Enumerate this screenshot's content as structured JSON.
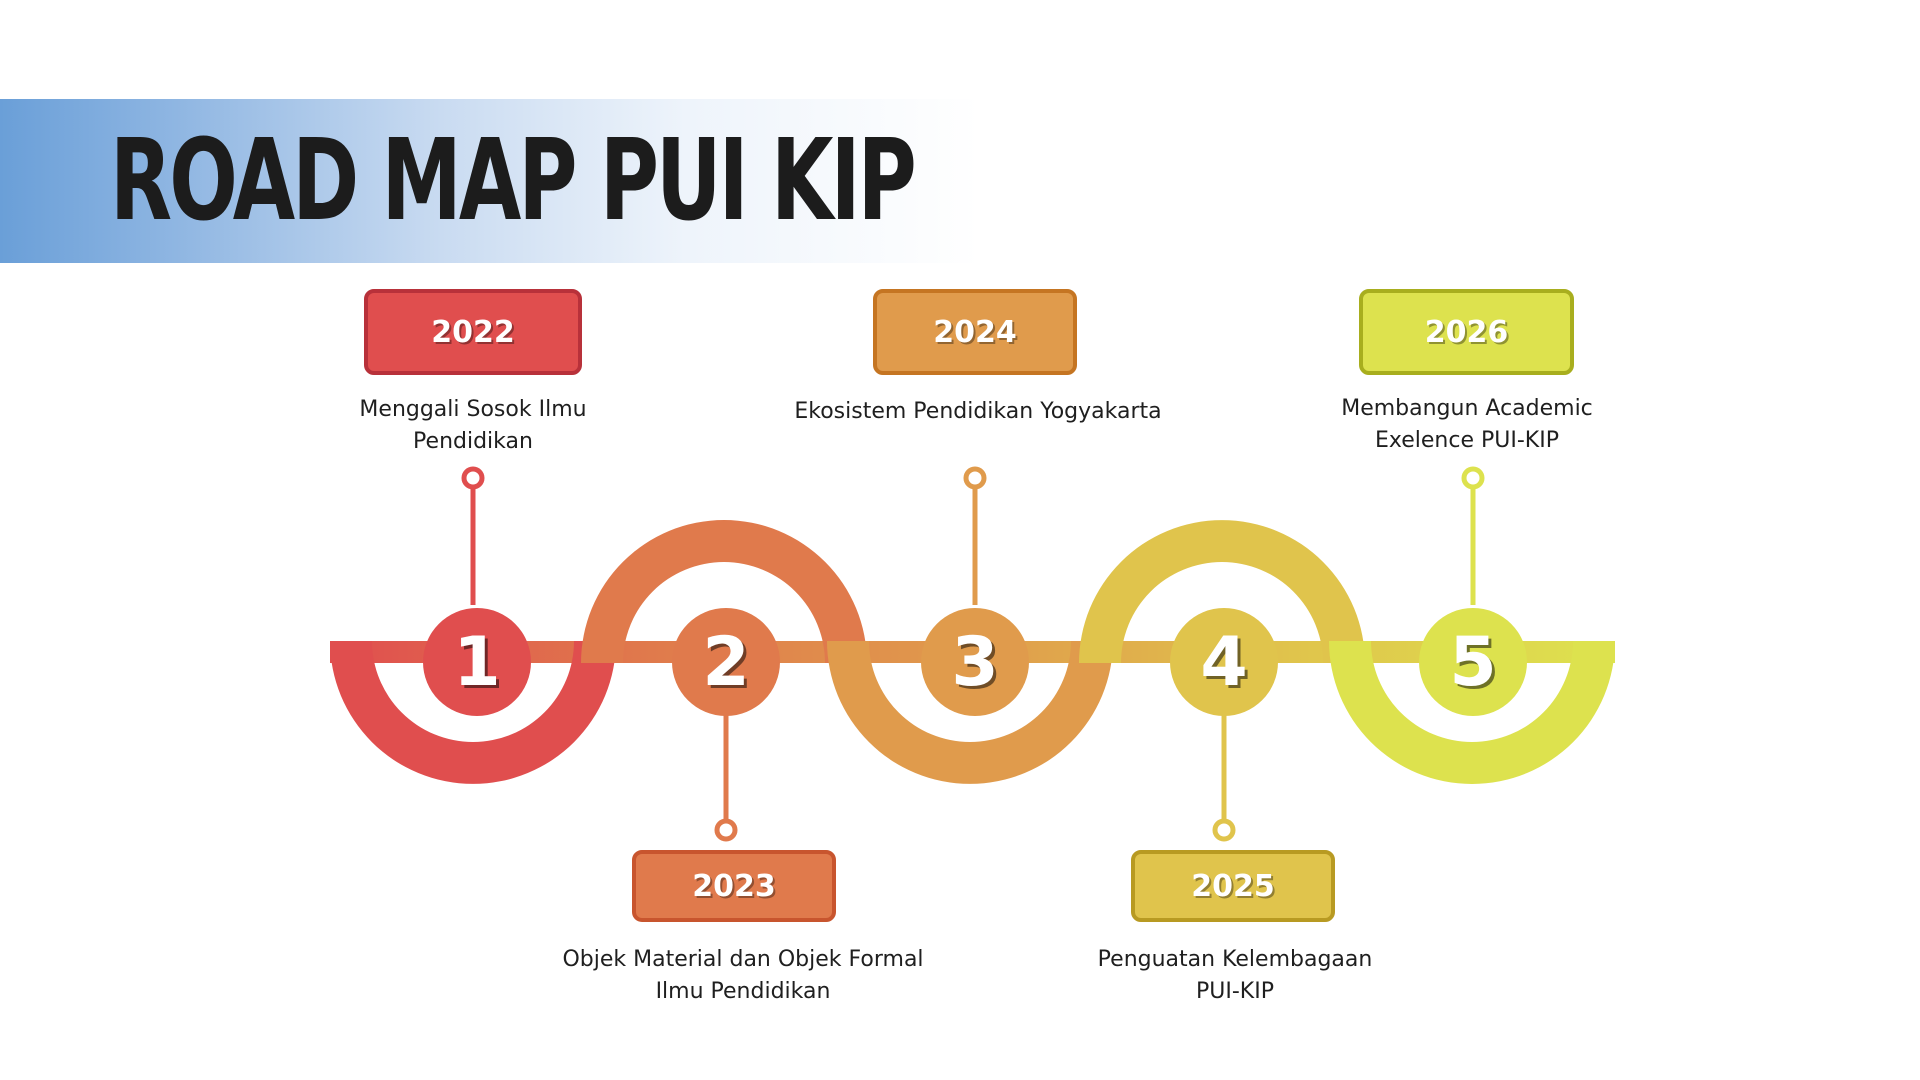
{
  "title": "ROAD MAP PUI KIP",
  "colors": {
    "red": "#e04e4e",
    "red_border": "#b8313a",
    "coral": "#e07a4c",
    "coral_border": "#c8552e",
    "orange": "#e09b4c",
    "orange_border": "#c57522",
    "gold": "#e0c44c",
    "gold_border": "#b89a22",
    "lime": "#dde24e",
    "lime_border": "#a8ae1e",
    "title_band": "#6a9fd8"
  },
  "milestones": [
    {
      "number": "1",
      "year": "2022",
      "lines": [
        "Menggali Sosok Ilmu",
        "Pendidikan"
      ]
    },
    {
      "number": "2",
      "year": "2023",
      "lines": [
        "Objek Material dan Objek Formal",
        "Ilmu Pendidikan"
      ]
    },
    {
      "number": "3",
      "year": "2024",
      "lines": [
        "Ekosistem Pendidikan Yogyakarta"
      ]
    },
    {
      "number": "4",
      "year": "2025",
      "lines": [
        "Penguatan Kelembagaan",
        "PUI-KIP"
      ]
    },
    {
      "number": "5",
      "year": "2026",
      "lines": [
        "Membangun Academic",
        "Exelence PUI-KIP"
      ]
    }
  ]
}
